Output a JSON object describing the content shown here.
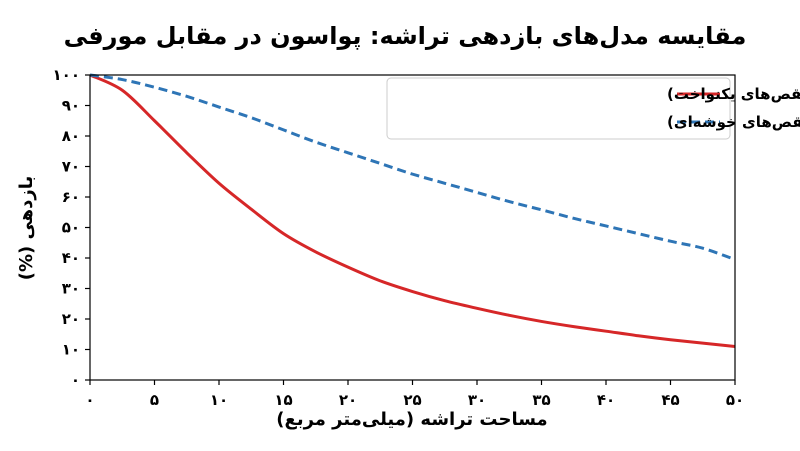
{
  "chart_data": {
    "type": "line",
    "title": "مقایسه مدل‌های بازدهی تراشه: پواسون در مقابل مورفی",
    "xlabel": "مساحت تراشه (میلی‌متر مربع)",
    "ylabel": "بازدهی (%)",
    "xlim": [
      0,
      50
    ],
    "ylim": [
      0,
      100
    ],
    "x_ticks": [
      0,
      5,
      10,
      15,
      20,
      25,
      30,
      35,
      40,
      45,
      50
    ],
    "y_ticks": [
      0,
      10,
      20,
      30,
      40,
      50,
      60,
      70,
      80,
      90,
      100
    ],
    "x_tick_labels": [
      "۰",
      "۵",
      "۱۰",
      "۱۵",
      "۲۰",
      "۲۵",
      "۳۰",
      "۳۵",
      "۴۰",
      "۴۵",
      "۵۰"
    ],
    "y_tick_labels": [
      "۰",
      "۱۰",
      "۲۰",
      "۳۰",
      "۴۰",
      "۵۰",
      "۶۰",
      "۷۰",
      "۸۰",
      "۹۰",
      "۱۰۰"
    ],
    "grid": false,
    "legend_position": "top-right",
    "x": [
      0,
      2.5,
      5,
      7.5,
      10,
      12.5,
      15,
      17.5,
      20,
      22.5,
      25,
      27.5,
      30,
      32.5,
      35,
      37.5,
      40,
      42.5,
      45,
      47.5,
      50
    ],
    "series": [
      {
        "name": "مدل پواسون (بدبینانه، نقص‌های یکنواخت)",
        "color": "#d62728",
        "style": "solid",
        "values": [
          100,
          95,
          85,
          74.5,
          64.5,
          56,
          48,
          42,
          37,
          32.5,
          29,
          26,
          23.5,
          21.2,
          19.2,
          17.5,
          16,
          14.5,
          13.2,
          12.1,
          11
        ]
      },
      {
        "name": "مدل مورفی (نقص‌های خوشه‌ای)",
        "color": "#2e75b6",
        "style": "dashed",
        "values": [
          100,
          98.5,
          96,
          93,
          89.5,
          86,
          82,
          78,
          74.5,
          71,
          67.5,
          64.5,
          61.5,
          58.5,
          55.8,
          53,
          50.5,
          48,
          45.5,
          43.2,
          39.5
        ]
      }
    ]
  }
}
